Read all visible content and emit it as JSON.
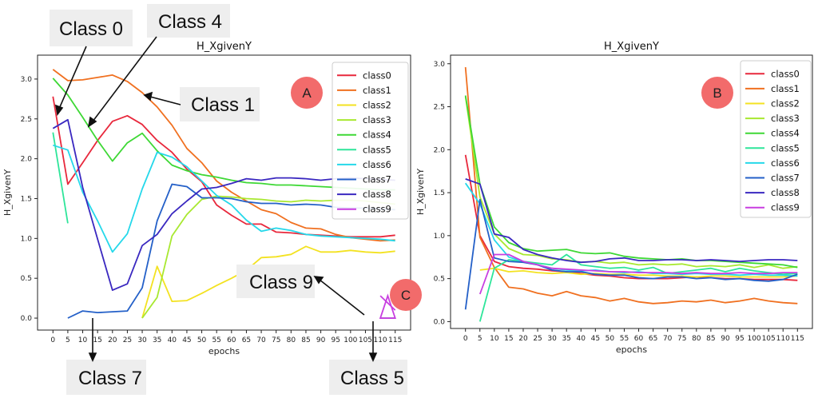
{
  "chart_data": [
    {
      "type": "line",
      "title": "H_XgivenY",
      "xlabel": "epochs",
      "ylabel": "H_XgivenY",
      "ylim": [
        -0.15,
        3.3
      ],
      "yticks": [
        "0.0",
        "0.5",
        "1.0",
        "1.5",
        "2.0",
        "2.5",
        "3.0"
      ],
      "x": [
        0,
        5,
        10,
        15,
        20,
        25,
        30,
        35,
        40,
        45,
        50,
        55,
        60,
        65,
        70,
        75,
        80,
        85,
        90,
        95,
        100,
        105,
        110,
        115
      ],
      "xticks": [
        "0",
        "5",
        "10",
        "15",
        "20",
        "25",
        "30",
        "35",
        "40",
        "45",
        "50",
        "55",
        "60",
        "65",
        "70",
        "75",
        "80",
        "85",
        "90",
        "95",
        "100",
        "105",
        "110",
        "115"
      ],
      "legend": "top-right",
      "badge": "A",
      "series": [
        {
          "name": "class0",
          "color": "#e8283c",
          "values": [
            2.78,
            1.68,
            1.95,
            2.23,
            2.47,
            2.54,
            2.43,
            2.23,
            2.08,
            1.87,
            1.71,
            1.42,
            1.29,
            1.18,
            1.18,
            1.08,
            1.07,
            1.05,
            1.04,
            1.03,
            1.02,
            1.02,
            1.02,
            1.04
          ]
        },
        {
          "name": "class1",
          "color": "#f07020",
          "values": [
            3.12,
            2.98,
            2.99,
            3.02,
            3.05,
            2.97,
            2.83,
            2.65,
            2.42,
            2.13,
            1.95,
            1.72,
            1.58,
            1.47,
            1.36,
            1.31,
            1.2,
            1.13,
            1.12,
            1.05,
            1.01,
            0.99,
            0.97,
            0.98
          ]
        },
        {
          "name": "class2",
          "color": "#f3e221",
          "values": [
            null,
            null,
            null,
            null,
            null,
            null,
            0.0,
            0.65,
            0.21,
            0.22,
            0.31,
            0.41,
            0.5,
            0.6,
            0.76,
            0.77,
            0.8,
            0.9,
            0.83,
            0.83,
            0.85,
            0.83,
            0.82,
            0.84
          ]
        },
        {
          "name": "class3",
          "color": "#a8e830",
          "values": [
            null,
            null,
            null,
            null,
            null,
            null,
            0.0,
            0.26,
            1.03,
            1.3,
            1.49,
            1.53,
            1.52,
            1.5,
            1.49,
            1.47,
            1.46,
            1.48,
            1.47,
            1.48,
            1.48,
            1.47,
            1.45,
            1.43
          ]
        },
        {
          "name": "class4",
          "color": "#3ed835",
          "values": [
            3.01,
            2.8,
            2.52,
            2.23,
            1.97,
            2.2,
            2.32,
            2.1,
            1.92,
            1.85,
            1.8,
            1.77,
            1.73,
            1.7,
            1.69,
            1.67,
            1.67,
            1.66,
            1.65,
            1.64,
            1.63,
            1.62,
            1.61,
            1.61
          ]
        },
        {
          "name": "class5",
          "color": "#2ee59a",
          "values": [
            2.33,
            1.19,
            null,
            null,
            null,
            null,
            null,
            null,
            null,
            null,
            null,
            null,
            null,
            null,
            null,
            null,
            null,
            null,
            null,
            null,
            null,
            null,
            0.0,
            0.0
          ]
        },
        {
          "name": "class6",
          "color": "#25d8ea",
          "values": [
            2.17,
            2.11,
            1.58,
            1.22,
            0.83,
            1.06,
            1.62,
            2.08,
            2.02,
            1.9,
            1.72,
            1.54,
            1.42,
            1.23,
            1.09,
            1.13,
            1.1,
            1.05,
            1.03,
            1.02,
            1.01,
            1.0,
            0.99,
            0.97
          ]
        },
        {
          "name": "class7",
          "color": "#2460c8",
          "values": [
            null,
            0.0,
            0.09,
            0.07,
            0.08,
            0.09,
            0.38,
            1.22,
            1.68,
            1.65,
            1.51,
            1.51,
            1.5,
            1.46,
            1.44,
            1.44,
            1.42,
            1.43,
            1.42,
            1.39,
            1.38,
            1.38,
            1.37,
            1.36
          ]
        },
        {
          "name": "class8",
          "color": "#3a28c0",
          "values": [
            2.38,
            2.49,
            1.64,
            0.99,
            0.35,
            0.43,
            0.91,
            1.05,
            1.31,
            1.47,
            1.62,
            1.64,
            1.69,
            1.75,
            1.73,
            1.76,
            1.76,
            1.75,
            1.73,
            1.75,
            1.76,
            1.75,
            1.74,
            1.73
          ]
        },
        {
          "name": "class9",
          "color": "#c83ee0",
          "values": [
            null,
            null,
            null,
            null,
            null,
            null,
            null,
            null,
            null,
            null,
            null,
            null,
            null,
            null,
            null,
            null,
            null,
            null,
            null,
            null,
            null,
            null,
            0.28,
            0.1
          ]
        }
      ]
    },
    {
      "type": "line",
      "title": "H_XgivenY",
      "xlabel": "epochs",
      "ylabel": "H_XgivenY",
      "ylim": [
        -0.08,
        3.1
      ],
      "yticks": [
        "0.0",
        "0.5",
        "1.0",
        "1.5",
        "2.0",
        "2.5",
        "3.0"
      ],
      "x": [
        0,
        5,
        10,
        15,
        20,
        25,
        30,
        35,
        40,
        45,
        50,
        55,
        60,
        65,
        70,
        75,
        80,
        85,
        90,
        95,
        100,
        105,
        110,
        115
      ],
      "xticks": [
        "0",
        "5",
        "10",
        "15",
        "20",
        "25",
        "30",
        "35",
        "40",
        "45",
        "50",
        "55",
        "60",
        "65",
        "70",
        "75",
        "80",
        "85",
        "90",
        "95",
        "100",
        "105",
        "110",
        "115"
      ],
      "legend": "top-right",
      "badge": "B",
      "series": [
        {
          "name": "class0",
          "color": "#e8283c",
          "values": [
            1.94,
            1.0,
            0.7,
            0.64,
            0.62,
            0.61,
            0.59,
            0.58,
            0.56,
            0.54,
            0.53,
            0.51,
            0.5,
            0.5,
            0.5,
            0.51,
            0.52,
            0.51,
            0.5,
            0.5,
            0.49,
            0.49,
            0.49,
            0.48
          ]
        },
        {
          "name": "class1",
          "color": "#f07020",
          "values": [
            2.96,
            0.98,
            0.63,
            0.4,
            0.38,
            0.33,
            0.3,
            0.35,
            0.3,
            0.28,
            0.24,
            0.27,
            0.23,
            0.21,
            0.22,
            0.24,
            0.23,
            0.25,
            0.22,
            0.24,
            0.27,
            0.24,
            0.22,
            0.21
          ]
        },
        {
          "name": "class2",
          "color": "#f3e221",
          "values": [
            null,
            0.6,
            0.62,
            0.58,
            0.59,
            0.57,
            0.56,
            0.57,
            0.55,
            0.56,
            0.55,
            0.55,
            0.54,
            0.54,
            0.53,
            0.53,
            0.52,
            0.53,
            0.53,
            0.52,
            0.52,
            0.52,
            0.52,
            0.53
          ]
        },
        {
          "name": "class3",
          "color": "#a8e830",
          "values": [
            2.62,
            1.45,
            1.02,
            0.85,
            0.78,
            0.77,
            0.73,
            0.72,
            0.69,
            0.7,
            0.68,
            0.69,
            0.66,
            0.67,
            0.66,
            0.67,
            0.64,
            0.65,
            0.64,
            0.66,
            0.63,
            0.66,
            0.62,
            0.64
          ]
        },
        {
          "name": "class4",
          "color": "#3ed835",
          "values": [
            2.63,
            1.6,
            1.1,
            0.92,
            0.85,
            0.82,
            0.83,
            0.84,
            0.8,
            0.79,
            0.8,
            0.76,
            0.74,
            0.73,
            0.72,
            0.73,
            0.71,
            0.71,
            0.7,
            0.69,
            0.68,
            0.67,
            0.66,
            0.63
          ]
        },
        {
          "name": "class5",
          "color": "#2ee59a",
          "values": [
            null,
            0.0,
            0.62,
            0.72,
            0.7,
            0.68,
            0.66,
            0.78,
            0.66,
            0.64,
            0.62,
            0.63,
            0.6,
            0.63,
            0.56,
            0.58,
            0.6,
            0.62,
            0.58,
            0.62,
            0.59,
            0.57,
            0.55,
            0.56
          ]
        },
        {
          "name": "class6",
          "color": "#25d8ea",
          "values": [
            1.61,
            1.37,
            0.95,
            0.75,
            0.7,
            0.66,
            0.62,
            0.6,
            0.59,
            0.6,
            0.58,
            0.57,
            0.58,
            0.56,
            0.56,
            0.55,
            0.56,
            0.55,
            0.55,
            0.54,
            0.55,
            0.54,
            0.54,
            0.53
          ]
        },
        {
          "name": "class7",
          "color": "#2460c8",
          "values": [
            0.14,
            1.42,
            0.74,
            0.7,
            0.69,
            0.66,
            0.6,
            0.58,
            0.58,
            0.55,
            0.54,
            0.54,
            0.51,
            0.5,
            0.52,
            0.52,
            0.5,
            0.51,
            0.49,
            0.5,
            0.48,
            0.47,
            0.49,
            0.55
          ]
        },
        {
          "name": "class8",
          "color": "#3a28c0",
          "values": [
            1.66,
            1.6,
            1.02,
            0.98,
            0.84,
            0.78,
            0.74,
            0.71,
            0.69,
            0.7,
            0.73,
            0.74,
            0.71,
            0.71,
            0.72,
            0.72,
            0.71,
            0.72,
            0.71,
            0.7,
            0.71,
            0.72,
            0.72,
            0.71
          ]
        },
        {
          "name": "class9",
          "color": "#c83ee0",
          "values": [
            null,
            0.32,
            0.78,
            0.78,
            0.7,
            0.66,
            0.62,
            0.61,
            0.6,
            0.59,
            0.58,
            0.58,
            0.57,
            0.57,
            0.57,
            0.56,
            0.57,
            0.56,
            0.56,
            0.57,
            0.56,
            0.56,
            0.57,
            0.57
          ]
        }
      ]
    }
  ],
  "annotations": {
    "class0": "Class 0",
    "class4": "Class 4",
    "class1": "Class 1",
    "class9": "Class 9",
    "class7": "Class 7",
    "class5": "Class 5",
    "badge_c": "C"
  }
}
